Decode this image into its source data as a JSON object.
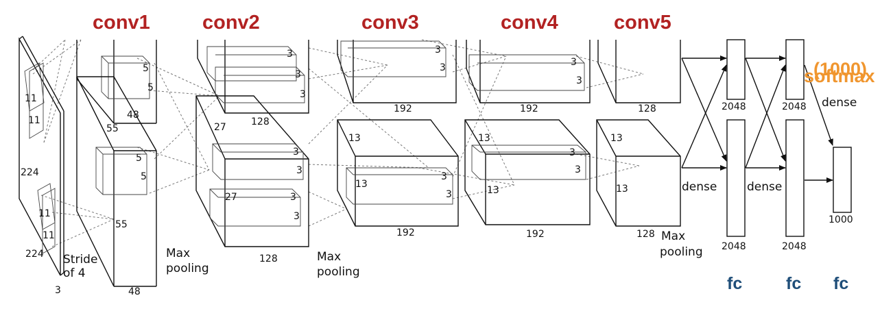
{
  "headers": {
    "conv1": "conv1",
    "conv2": "conv2",
    "conv3": "conv3",
    "conv4": "conv4",
    "conv5": "conv5",
    "fc1": "fc",
    "fc2": "fc",
    "fc3": "fc",
    "softmax_count": "(1000)",
    "softmax": "softmax"
  },
  "input": {
    "width": "224",
    "height": "224",
    "channels": "3",
    "kernel_a": "11",
    "kernel_b": "11",
    "kernel_c": "11",
    "kernel_d": "11",
    "stride_line1": "Stride",
    "stride_line2": "of 4"
  },
  "conv1": {
    "kernel_top_a": "5",
    "kernel_top_b": "5",
    "kernel_bot_a": "5",
    "kernel_bot_b": "5",
    "side": "55",
    "side_mid": "55",
    "depth_top": "48",
    "depth_bot": "48"
  },
  "pool1": {
    "line1": "Max",
    "line2": "pooling"
  },
  "conv2": {
    "k1": "3",
    "k2": "3",
    "k3": "3",
    "k4": "3",
    "k5": "3",
    "k6": "3",
    "k7": "3",
    "side": "27",
    "side_inner": "27",
    "depth_top": "128",
    "depth_bot": "128"
  },
  "pool2": {
    "line1": "Max",
    "line2": "pooling"
  },
  "conv3": {
    "k1": "3",
    "k2": "3",
    "k3": "3",
    "k4": "3",
    "side_a": "13",
    "side_b": "13",
    "depth_top": "192",
    "depth_bot": "192"
  },
  "conv4": {
    "k1": "3",
    "k2": "3",
    "k3": "3",
    "k4": "3",
    "side_a": "13",
    "side_b": "13",
    "depth_top": "192",
    "depth_bot": "192"
  },
  "conv5": {
    "side_a": "13",
    "side_b": "13",
    "depth_top": "128",
    "depth_bot": "128"
  },
  "pool3": {
    "line1": "Max",
    "line2": "pooling"
  },
  "fc6": {
    "top": "2048",
    "bot": "2048",
    "dense": "dense"
  },
  "fc7": {
    "top": "2048",
    "bot": "2048",
    "dense": "dense"
  },
  "fc8": {
    "size": "1000",
    "dense": "dense"
  }
}
